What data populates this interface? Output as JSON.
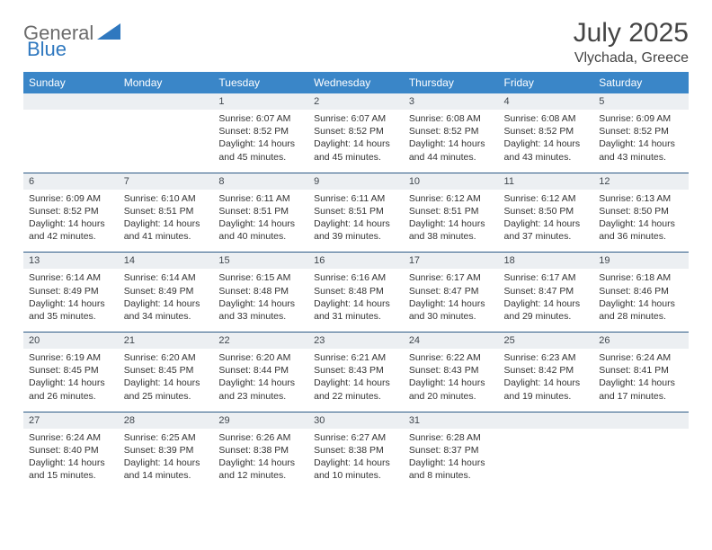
{
  "logo": {
    "text1": "General",
    "text2": "Blue"
  },
  "title": "July 2025",
  "subtitle": "Vlychada, Greece",
  "colors": {
    "header_bg": "#3a86c8",
    "header_text": "#ffffff",
    "daynum_bg": "#eceff2",
    "daynum_text": "#40474e",
    "border_top": "#2c5a86",
    "title_color": "#444444",
    "logo_gray": "#6b6b6b",
    "logo_blue": "#2f78bf"
  },
  "typography": {
    "title_fontsize": 30,
    "subtitle_fontsize": 16,
    "header_fontsize": 12,
    "daynum_fontsize": 11,
    "cell_fontsize": 10.5
  },
  "weekdays": [
    "Sunday",
    "Monday",
    "Tuesday",
    "Wednesday",
    "Thursday",
    "Friday",
    "Saturday"
  ],
  "weeks": [
    {
      "nums": [
        "",
        "",
        "1",
        "2",
        "3",
        "4",
        "5"
      ],
      "cells": [
        null,
        null,
        {
          "sunrise": "Sunrise: 6:07 AM",
          "sunset": "Sunset: 8:52 PM",
          "day1": "Daylight: 14 hours",
          "day2": "and 45 minutes."
        },
        {
          "sunrise": "Sunrise: 6:07 AM",
          "sunset": "Sunset: 8:52 PM",
          "day1": "Daylight: 14 hours",
          "day2": "and 45 minutes."
        },
        {
          "sunrise": "Sunrise: 6:08 AM",
          "sunset": "Sunset: 8:52 PM",
          "day1": "Daylight: 14 hours",
          "day2": "and 44 minutes."
        },
        {
          "sunrise": "Sunrise: 6:08 AM",
          "sunset": "Sunset: 8:52 PM",
          "day1": "Daylight: 14 hours",
          "day2": "and 43 minutes."
        },
        {
          "sunrise": "Sunrise: 6:09 AM",
          "sunset": "Sunset: 8:52 PM",
          "day1": "Daylight: 14 hours",
          "day2": "and 43 minutes."
        }
      ]
    },
    {
      "nums": [
        "6",
        "7",
        "8",
        "9",
        "10",
        "11",
        "12"
      ],
      "cells": [
        {
          "sunrise": "Sunrise: 6:09 AM",
          "sunset": "Sunset: 8:52 PM",
          "day1": "Daylight: 14 hours",
          "day2": "and 42 minutes."
        },
        {
          "sunrise": "Sunrise: 6:10 AM",
          "sunset": "Sunset: 8:51 PM",
          "day1": "Daylight: 14 hours",
          "day2": "and 41 minutes."
        },
        {
          "sunrise": "Sunrise: 6:11 AM",
          "sunset": "Sunset: 8:51 PM",
          "day1": "Daylight: 14 hours",
          "day2": "and 40 minutes."
        },
        {
          "sunrise": "Sunrise: 6:11 AM",
          "sunset": "Sunset: 8:51 PM",
          "day1": "Daylight: 14 hours",
          "day2": "and 39 minutes."
        },
        {
          "sunrise": "Sunrise: 6:12 AM",
          "sunset": "Sunset: 8:51 PM",
          "day1": "Daylight: 14 hours",
          "day2": "and 38 minutes."
        },
        {
          "sunrise": "Sunrise: 6:12 AM",
          "sunset": "Sunset: 8:50 PM",
          "day1": "Daylight: 14 hours",
          "day2": "and 37 minutes."
        },
        {
          "sunrise": "Sunrise: 6:13 AM",
          "sunset": "Sunset: 8:50 PM",
          "day1": "Daylight: 14 hours",
          "day2": "and 36 minutes."
        }
      ]
    },
    {
      "nums": [
        "13",
        "14",
        "15",
        "16",
        "17",
        "18",
        "19"
      ],
      "cells": [
        {
          "sunrise": "Sunrise: 6:14 AM",
          "sunset": "Sunset: 8:49 PM",
          "day1": "Daylight: 14 hours",
          "day2": "and 35 minutes."
        },
        {
          "sunrise": "Sunrise: 6:14 AM",
          "sunset": "Sunset: 8:49 PM",
          "day1": "Daylight: 14 hours",
          "day2": "and 34 minutes."
        },
        {
          "sunrise": "Sunrise: 6:15 AM",
          "sunset": "Sunset: 8:48 PM",
          "day1": "Daylight: 14 hours",
          "day2": "and 33 minutes."
        },
        {
          "sunrise": "Sunrise: 6:16 AM",
          "sunset": "Sunset: 8:48 PM",
          "day1": "Daylight: 14 hours",
          "day2": "and 31 minutes."
        },
        {
          "sunrise": "Sunrise: 6:17 AM",
          "sunset": "Sunset: 8:47 PM",
          "day1": "Daylight: 14 hours",
          "day2": "and 30 minutes."
        },
        {
          "sunrise": "Sunrise: 6:17 AM",
          "sunset": "Sunset: 8:47 PM",
          "day1": "Daylight: 14 hours",
          "day2": "and 29 minutes."
        },
        {
          "sunrise": "Sunrise: 6:18 AM",
          "sunset": "Sunset: 8:46 PM",
          "day1": "Daylight: 14 hours",
          "day2": "and 28 minutes."
        }
      ]
    },
    {
      "nums": [
        "20",
        "21",
        "22",
        "23",
        "24",
        "25",
        "26"
      ],
      "cells": [
        {
          "sunrise": "Sunrise: 6:19 AM",
          "sunset": "Sunset: 8:45 PM",
          "day1": "Daylight: 14 hours",
          "day2": "and 26 minutes."
        },
        {
          "sunrise": "Sunrise: 6:20 AM",
          "sunset": "Sunset: 8:45 PM",
          "day1": "Daylight: 14 hours",
          "day2": "and 25 minutes."
        },
        {
          "sunrise": "Sunrise: 6:20 AM",
          "sunset": "Sunset: 8:44 PM",
          "day1": "Daylight: 14 hours",
          "day2": "and 23 minutes."
        },
        {
          "sunrise": "Sunrise: 6:21 AM",
          "sunset": "Sunset: 8:43 PM",
          "day1": "Daylight: 14 hours",
          "day2": "and 22 minutes."
        },
        {
          "sunrise": "Sunrise: 6:22 AM",
          "sunset": "Sunset: 8:43 PM",
          "day1": "Daylight: 14 hours",
          "day2": "and 20 minutes."
        },
        {
          "sunrise": "Sunrise: 6:23 AM",
          "sunset": "Sunset: 8:42 PM",
          "day1": "Daylight: 14 hours",
          "day2": "and 19 minutes."
        },
        {
          "sunrise": "Sunrise: 6:24 AM",
          "sunset": "Sunset: 8:41 PM",
          "day1": "Daylight: 14 hours",
          "day2": "and 17 minutes."
        }
      ]
    },
    {
      "nums": [
        "27",
        "28",
        "29",
        "30",
        "31",
        "",
        ""
      ],
      "cells": [
        {
          "sunrise": "Sunrise: 6:24 AM",
          "sunset": "Sunset: 8:40 PM",
          "day1": "Daylight: 14 hours",
          "day2": "and 15 minutes."
        },
        {
          "sunrise": "Sunrise: 6:25 AM",
          "sunset": "Sunset: 8:39 PM",
          "day1": "Daylight: 14 hours",
          "day2": "and 14 minutes."
        },
        {
          "sunrise": "Sunrise: 6:26 AM",
          "sunset": "Sunset: 8:38 PM",
          "day1": "Daylight: 14 hours",
          "day2": "and 12 minutes."
        },
        {
          "sunrise": "Sunrise: 6:27 AM",
          "sunset": "Sunset: 8:38 PM",
          "day1": "Daylight: 14 hours",
          "day2": "and 10 minutes."
        },
        {
          "sunrise": "Sunrise: 6:28 AM",
          "sunset": "Sunset: 8:37 PM",
          "day1": "Daylight: 14 hours",
          "day2": "and 8 minutes."
        },
        null,
        null
      ]
    }
  ]
}
